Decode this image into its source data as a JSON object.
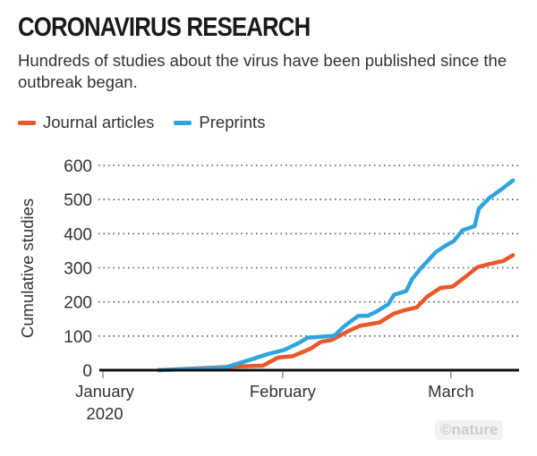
{
  "title": "CORONAVIRUS RESEARCH",
  "subtitle": "Hundreds of studies about the virus have been published since the outbreak began.",
  "watermark": "©nature",
  "chart_data": {
    "type": "line",
    "title": "CORONAVIRUS RESEARCH",
    "xlabel": "",
    "ylabel": "Cumulative studies",
    "ylim": [
      0,
      600
    ],
    "yticks": [
      0,
      100,
      200,
      300,
      400,
      500,
      600
    ],
    "xlim_days_since_jan1": [
      0,
      72
    ],
    "xticks": [
      {
        "day": 0,
        "label": "January",
        "label2": "2020"
      },
      {
        "day": 31,
        "label": "February",
        "label2": ""
      },
      {
        "day": 60,
        "label": "March",
        "label2": ""
      }
    ],
    "grid": "horizontal-dotted",
    "legend": "top-left",
    "series": [
      {
        "name": "Journal articles",
        "color": "#e8582a",
        "points": [
          [
            9.6,
            0
          ],
          [
            23.5,
            11
          ],
          [
            27.6,
            13
          ],
          [
            30.2,
            37
          ],
          [
            32.7,
            41
          ],
          [
            35.8,
            63
          ],
          [
            37.6,
            83
          ],
          [
            39.4,
            88
          ],
          [
            42.5,
            116
          ],
          [
            44.3,
            130
          ],
          [
            47.7,
            140
          ],
          [
            50.2,
            166
          ],
          [
            52.3,
            177
          ],
          [
            54.1,
            184
          ],
          [
            55.9,
            215
          ],
          [
            58.2,
            241
          ],
          [
            60.3,
            245
          ],
          [
            62,
            267
          ],
          [
            64.6,
            302
          ],
          [
            66.6,
            311
          ],
          [
            69,
            320
          ],
          [
            70.7,
            337
          ]
        ]
      },
      {
        "name": "Preprints",
        "color": "#2ea6dd",
        "points": [
          [
            9.6,
            0
          ],
          [
            20.9,
            7
          ],
          [
            25.5,
            31
          ],
          [
            28.6,
            48
          ],
          [
            31.2,
            59
          ],
          [
            33.7,
            79
          ],
          [
            35.3,
            95
          ],
          [
            39.9,
            101
          ],
          [
            41.5,
            127
          ],
          [
            44,
            159
          ],
          [
            45.6,
            159
          ],
          [
            47.1,
            171
          ],
          [
            49.2,
            193
          ],
          [
            50.2,
            221
          ],
          [
            52.3,
            232
          ],
          [
            53.3,
            267
          ],
          [
            54.8,
            298
          ],
          [
            57.4,
            346
          ],
          [
            59.2,
            366
          ],
          [
            60.5,
            378
          ],
          [
            62,
            410
          ],
          [
            64.1,
            422
          ],
          [
            64.8,
            473
          ],
          [
            66.6,
            504
          ],
          [
            69.2,
            536
          ],
          [
            70.7,
            556
          ]
        ]
      }
    ]
  }
}
